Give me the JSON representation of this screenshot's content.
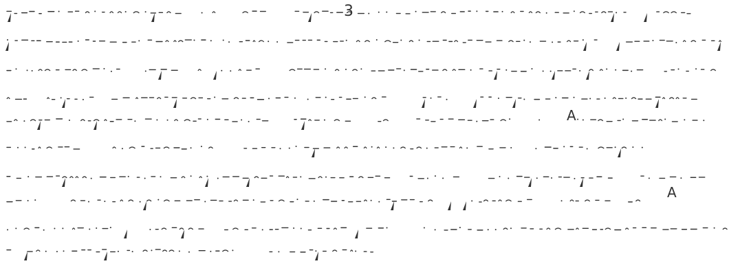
{
  "glyphs": {
    "three": "3",
    "a_upper": "A",
    "a_lower": "A"
  },
  "colors": {
    "background": "#ffffff",
    "ink": "#333333"
  }
}
